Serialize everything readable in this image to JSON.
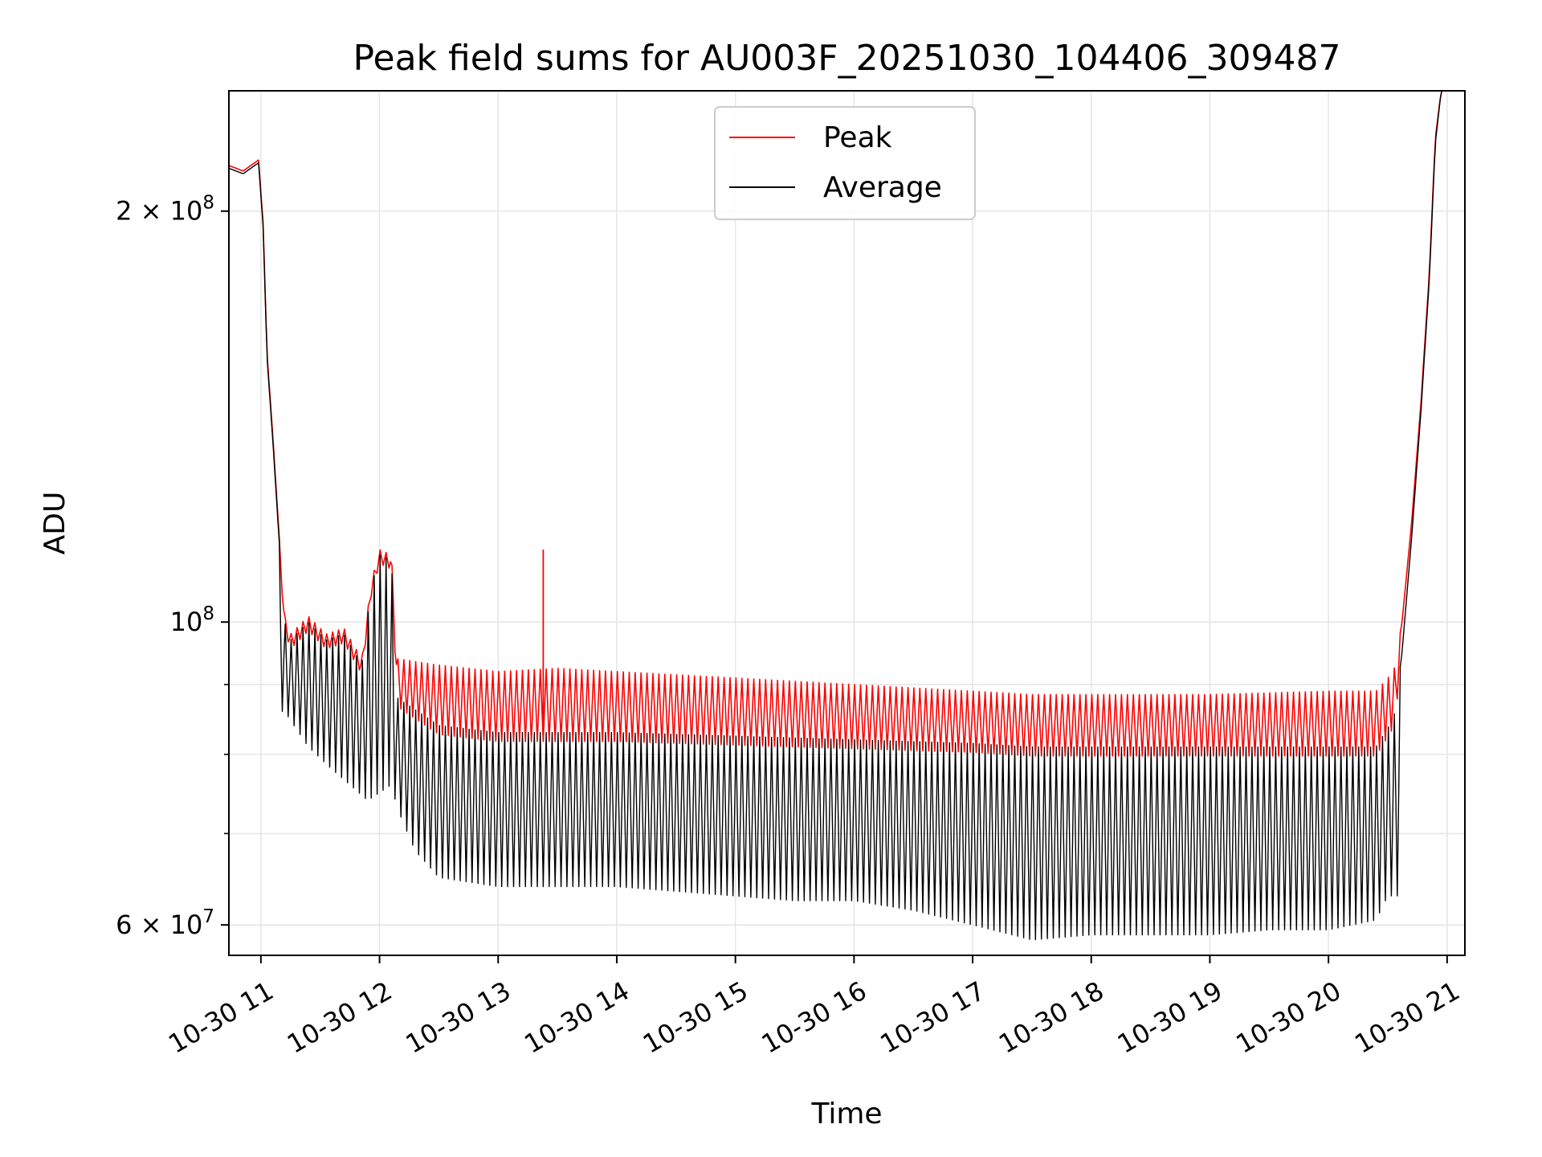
{
  "chart_data": {
    "type": "line",
    "title": "Peak field sums for AU003F_20251030_104406_309487",
    "xlabel": "Time",
    "ylabel": "ADU",
    "yscale": "log",
    "ylim": [
      57000000,
      245000000
    ],
    "xlim_hours": [
      10.73,
      21.15
    ],
    "x_ticks": [
      {
        "hour": 11,
        "label": "10-30 11"
      },
      {
        "hour": 12,
        "label": "10-30 12"
      },
      {
        "hour": 13,
        "label": "10-30 13"
      },
      {
        "hour": 14,
        "label": "10-30 14"
      },
      {
        "hour": 15,
        "label": "10-30 15"
      },
      {
        "hour": 16,
        "label": "10-30 16"
      },
      {
        "hour": 17,
        "label": "10-30 17"
      },
      {
        "hour": 18,
        "label": "10-30 18"
      },
      {
        "hour": 19,
        "label": "10-30 19"
      },
      {
        "hour": 20,
        "label": "10-30 20"
      },
      {
        "hour": 21,
        "label": "10-30 21"
      }
    ],
    "y_ticks_major": [
      {
        "value": 60000000,
        "mantissa": "6",
        "exponent": "7",
        "times": true
      },
      {
        "value": 100000000,
        "mantissa": "",
        "exponent": "8",
        "times": false
      },
      {
        "value": 200000000,
        "mantissa": "2",
        "exponent": "8",
        "times": true
      }
    ],
    "y_ticks_minor": [
      70000000,
      80000000,
      90000000
    ],
    "grid": true,
    "legend_position": "top-center",
    "series": [
      {
        "name": "Peak",
        "color": "#ff0000",
        "points": [
          [
            10.73,
            216000000
          ],
          [
            10.85,
            214000000
          ],
          [
            10.98,
            218000000
          ],
          [
            11.02,
            195000000
          ],
          [
            11.05,
            158000000
          ],
          [
            11.1,
            137000000
          ],
          [
            11.15,
            117000000
          ],
          [
            11.2,
            101000000
          ],
          [
            11.25,
            98000000
          ],
          [
            11.4,
            101000000
          ],
          [
            11.55,
            98000000
          ],
          [
            11.7,
            99000000
          ],
          [
            11.85,
            94000000
          ],
          [
            11.93,
            107000000
          ],
          [
            12.0,
            113000000
          ],
          [
            12.1,
            112000000
          ],
          [
            12.15,
            94000000
          ],
          [
            12.5,
            93000000
          ],
          [
            13.0,
            92000000
          ],
          [
            13.5,
            92500000
          ],
          [
            14.0,
            92000000
          ],
          [
            15.0,
            91000000
          ],
          [
            16.0,
            90000000
          ],
          [
            17.0,
            89000000
          ],
          [
            17.5,
            88500000
          ],
          [
            18.0,
            88500000
          ],
          [
            19.0,
            88500000
          ],
          [
            20.0,
            89000000
          ],
          [
            20.4,
            89000000
          ],
          [
            20.55,
            92000000
          ],
          [
            20.62,
            100000000
          ],
          [
            20.7,
            118000000
          ],
          [
            20.78,
            145000000
          ],
          [
            20.85,
            180000000
          ],
          [
            20.9,
            226000000
          ],
          [
            20.95,
            245000000
          ]
        ],
        "spike": {
          "hour": 13.38,
          "value": 113000000
        }
      },
      {
        "name": "Average",
        "color": "#000000",
        "points": [
          [
            10.73,
            215000000
          ],
          [
            10.85,
            213000000
          ],
          [
            10.98,
            217000000
          ],
          [
            11.02,
            194000000
          ],
          [
            11.05,
            157000000
          ],
          [
            11.1,
            136000000
          ],
          [
            11.15,
            116000000
          ],
          [
            11.2,
            100000000
          ],
          [
            11.25,
            97000000
          ],
          [
            11.4,
            100000000
          ],
          [
            11.55,
            97000000
          ],
          [
            11.7,
            98000000
          ],
          [
            11.85,
            93000000
          ],
          [
            11.93,
            106000000
          ],
          [
            12.0,
            112000000
          ],
          [
            12.1,
            111000000
          ],
          [
            12.15,
            88000000
          ],
          [
            12.5,
            84000000
          ],
          [
            13.0,
            83000000
          ],
          [
            13.5,
            83000000
          ],
          [
            14.0,
            83000000
          ],
          [
            15.0,
            82500000
          ],
          [
            16.0,
            82000000
          ],
          [
            17.0,
            81500000
          ],
          [
            17.5,
            81000000
          ],
          [
            18.0,
            81000000
          ],
          [
            19.0,
            81000000
          ],
          [
            20.0,
            81000000
          ],
          [
            20.4,
            81000000
          ],
          [
            20.55,
            85000000
          ],
          [
            20.62,
            95000000
          ],
          [
            20.7,
            115000000
          ],
          [
            20.78,
            143000000
          ],
          [
            20.85,
            178000000
          ],
          [
            20.9,
            224000000
          ],
          [
            20.95,
            245000000
          ]
        ],
        "troughs": [
          [
            11.2,
            86000000
          ],
          [
            11.4,
            81000000
          ],
          [
            11.6,
            78000000
          ],
          [
            11.75,
            76000000
          ],
          [
            11.9,
            74000000
          ],
          [
            12.1,
            76000000
          ],
          [
            12.15,
            73000000
          ],
          [
            12.3,
            68000000
          ],
          [
            12.5,
            65000000
          ],
          [
            13.0,
            64000000
          ],
          [
            13.5,
            64000000
          ],
          [
            14.0,
            64000000
          ],
          [
            14.5,
            63500000
          ],
          [
            15.0,
            63000000
          ],
          [
            15.5,
            62500000
          ],
          [
            16.0,
            62500000
          ],
          [
            16.5,
            61500000
          ],
          [
            17.0,
            60000000
          ],
          [
            17.5,
            58500000
          ],
          [
            18.0,
            59000000
          ],
          [
            18.5,
            59000000
          ],
          [
            19.0,
            59000000
          ],
          [
            19.5,
            59500000
          ],
          [
            20.0,
            59500000
          ],
          [
            20.4,
            60500000
          ],
          [
            20.5,
            63000000
          ]
        ]
      }
    ]
  }
}
